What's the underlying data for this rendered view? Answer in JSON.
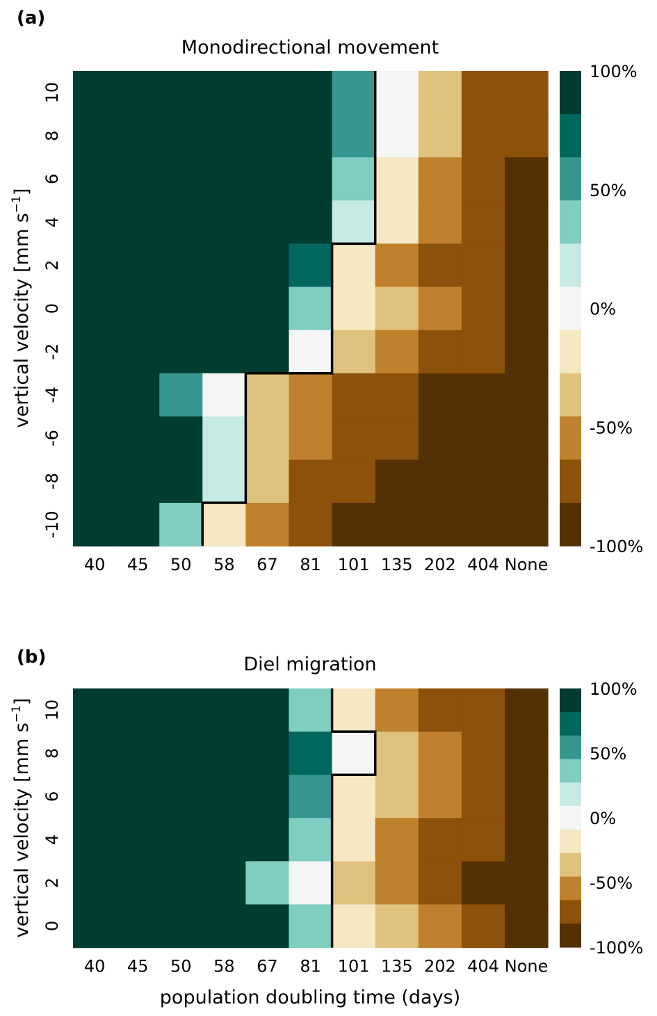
{
  "shared": {
    "x_categories": [
      "40",
      "45",
      "50",
      "58",
      "67",
      "81",
      "101",
      "135",
      "202",
      "404",
      "None"
    ],
    "xlabel": "population doubling time (days)",
    "ylabel": "vertical velocity [mm s$^{-1}$]",
    "ylabel_display": "vertical velocity [mm s",
    "ylabel_exponent": "−1",
    "ylabel_close": "]",
    "colorbar_ticks": [
      "100%",
      "50%",
      "0%",
      "-50%",
      "-100%"
    ],
    "colors": [
      "#543005",
      "#8c510a",
      "#bf812d",
      "#dfc27d",
      "#f6e8c3",
      "#f5f5f5",
      "#c7eae5",
      "#80cdc1",
      "#35978f",
      "#01665e",
      "#003c30"
    ]
  },
  "chart_data": [
    {
      "panel_label": "(a)",
      "type": "heatmap",
      "title": "Monodirectional movement",
      "xlabel": "",
      "ylabel": "vertical velocity [mm s^-1]",
      "x": [
        "40",
        "45",
        "50",
        "58",
        "67",
        "81",
        "101",
        "135",
        "202",
        "404",
        "None"
      ],
      "y": [
        "10",
        "8",
        "6",
        "4",
        "2",
        "0",
        "-2",
        "-4",
        "-6",
        "-8",
        "-10"
      ],
      "zlim": [
        -100,
        100
      ],
      "colorbar_ticks": [
        "100%",
        "50%",
        "0%",
        "-50%",
        "-100%"
      ],
      "values": [
        [
          100,
          100,
          100,
          100,
          100,
          100,
          55,
          0,
          -35,
          -75,
          -75
        ],
        [
          100,
          100,
          100,
          100,
          100,
          100,
          55,
          0,
          -35,
          -75,
          -75
        ],
        [
          100,
          100,
          100,
          100,
          100,
          100,
          35,
          -15,
          -55,
          -75,
          -95
        ],
        [
          100,
          100,
          100,
          100,
          100,
          100,
          15,
          -15,
          -55,
          -75,
          -95
        ],
        [
          100,
          100,
          100,
          100,
          100,
          75,
          -15,
          -55,
          -75,
          -75,
          -95
        ],
        [
          100,
          100,
          100,
          100,
          100,
          35,
          -15,
          -35,
          -55,
          -75,
          -95
        ],
        [
          100,
          100,
          100,
          100,
          100,
          0,
          -35,
          -55,
          -75,
          -75,
          -95
        ],
        [
          100,
          100,
          55,
          0,
          -35,
          -55,
          -75,
          -75,
          -95,
          -95,
          -95
        ],
        [
          100,
          100,
          100,
          15,
          -35,
          -55,
          -75,
          -75,
          -95,
          -95,
          -95
        ],
        [
          100,
          100,
          100,
          15,
          -35,
          -75,
          -75,
          -95,
          -95,
          -95,
          -95
        ],
        [
          100,
          100,
          35,
          -15,
          -55,
          -75,
          -95,
          -95,
          -95,
          -95,
          -95
        ]
      ],
      "contour_path": [
        [
          7,
          0
        ],
        [
          7,
          4
        ],
        [
          6,
          4
        ],
        [
          6,
          7
        ],
        [
          4,
          7
        ],
        [
          4,
          10
        ],
        [
          3,
          10
        ],
        [
          3,
          11
        ]
      ]
    },
    {
      "panel_label": "(b)",
      "type": "heatmap",
      "title": "Diel migration",
      "xlabel": "population doubling time (days)",
      "ylabel": "vertical velocity [mm s^-1]",
      "x": [
        "40",
        "45",
        "50",
        "58",
        "67",
        "81",
        "101",
        "135",
        "202",
        "404",
        "None"
      ],
      "y": [
        "10",
        "8",
        "6",
        "4",
        "2",
        "0"
      ],
      "zlim": [
        -100,
        100
      ],
      "colorbar_ticks": [
        "100%",
        "50%",
        "0%",
        "-50%",
        "-100%"
      ],
      "values": [
        [
          100,
          100,
          100,
          100,
          100,
          35,
          -15,
          -55,
          -75,
          -75,
          -95
        ],
        [
          100,
          100,
          100,
          100,
          100,
          75,
          0,
          -35,
          -55,
          -75,
          -95
        ],
        [
          100,
          100,
          100,
          100,
          100,
          55,
          -15,
          -35,
          -55,
          -75,
          -95
        ],
        [
          100,
          100,
          100,
          100,
          100,
          35,
          -15,
          -55,
          -75,
          -75,
          -95
        ],
        [
          100,
          100,
          100,
          100,
          35,
          0,
          -35,
          -55,
          -75,
          -95,
          -95
        ],
        [
          100,
          100,
          100,
          100,
          100,
          35,
          -15,
          -35,
          -55,
          -75,
          -95
        ]
      ],
      "contour_path": [
        [
          6,
          0
        ],
        [
          6,
          1
        ],
        [
          7,
          1
        ],
        [
          7,
          2
        ],
        [
          6,
          2
        ],
        [
          6,
          6
        ]
      ]
    }
  ]
}
